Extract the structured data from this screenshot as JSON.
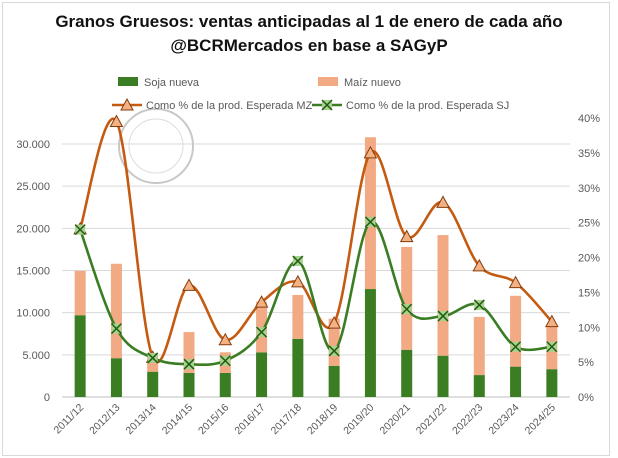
{
  "chart_data": {
    "type": "bar",
    "title_line1": "Granos Gruesos: ventas anticipadas al 1 de enero de cada año",
    "title_line2": "@BCRMercados en base a SAGyP",
    "categories": [
      "2011/12",
      "2012/13",
      "2013/14",
      "2014/15",
      "2015/16",
      "2016/17",
      "2017/18",
      "2018/19",
      "2019/20",
      "2020/21",
      "2021/22",
      "2022/23",
      "2023/24",
      "2024/25"
    ],
    "series": [
      {
        "name": "Soja nueva",
        "kind": "bar",
        "axis": "left",
        "color": "#3a7d22",
        "values": [
          9700,
          4600,
          3000,
          2850,
          2850,
          5300,
          6900,
          3700,
          12800,
          5600,
          4900,
          2600,
          3600,
          3300
        ]
      },
      {
        "name": "Maíz nuevo",
        "kind": "bar",
        "axis": "left",
        "color": "#f2aa84",
        "values": [
          5250,
          11200,
          2000,
          4850,
          2450,
          6000,
          5200,
          5600,
          18000,
          12200,
          14300,
          6900,
          8400,
          5000
        ]
      },
      {
        "name": "Como % de la prod. Esperada MZ",
        "kind": "line",
        "axis": "right",
        "color": "#c55a11",
        "marker": "triangle",
        "values": [
          24.1,
          39.5,
          5.7,
          16.0,
          8.2,
          13.6,
          16.5,
          10.6,
          35.0,
          23.0,
          27.9,
          18.8,
          16.4,
          10.8
        ]
      },
      {
        "name": "Como % de la prod. Esperada SJ",
        "kind": "line",
        "axis": "right",
        "color": "#3a7d22",
        "marker": "x",
        "values": [
          24.0,
          9.8,
          5.6,
          4.7,
          5.2,
          9.3,
          19.5,
          6.6,
          25.1,
          12.6,
          11.6,
          13.2,
          7.2,
          7.2
        ]
      }
    ],
    "left_axis": {
      "ylim": [
        0,
        33000
      ],
      "ticks": [
        "0",
        "5.000",
        "10.000",
        "15.000",
        "20.000",
        "25.000",
        "30.000"
      ],
      "tick_values": [
        0,
        5000,
        10000,
        15000,
        20000,
        25000,
        30000
      ]
    },
    "right_axis": {
      "ylim": [
        0,
        40
      ],
      "ticks": [
        "0%",
        "5%",
        "10%",
        "15%",
        "20%",
        "25%",
        "30%",
        "35%",
        "40%"
      ],
      "tick_values": [
        0,
        5,
        10,
        15,
        20,
        25,
        30,
        35,
        40
      ]
    },
    "grid": true,
    "legend_placement": "top"
  }
}
